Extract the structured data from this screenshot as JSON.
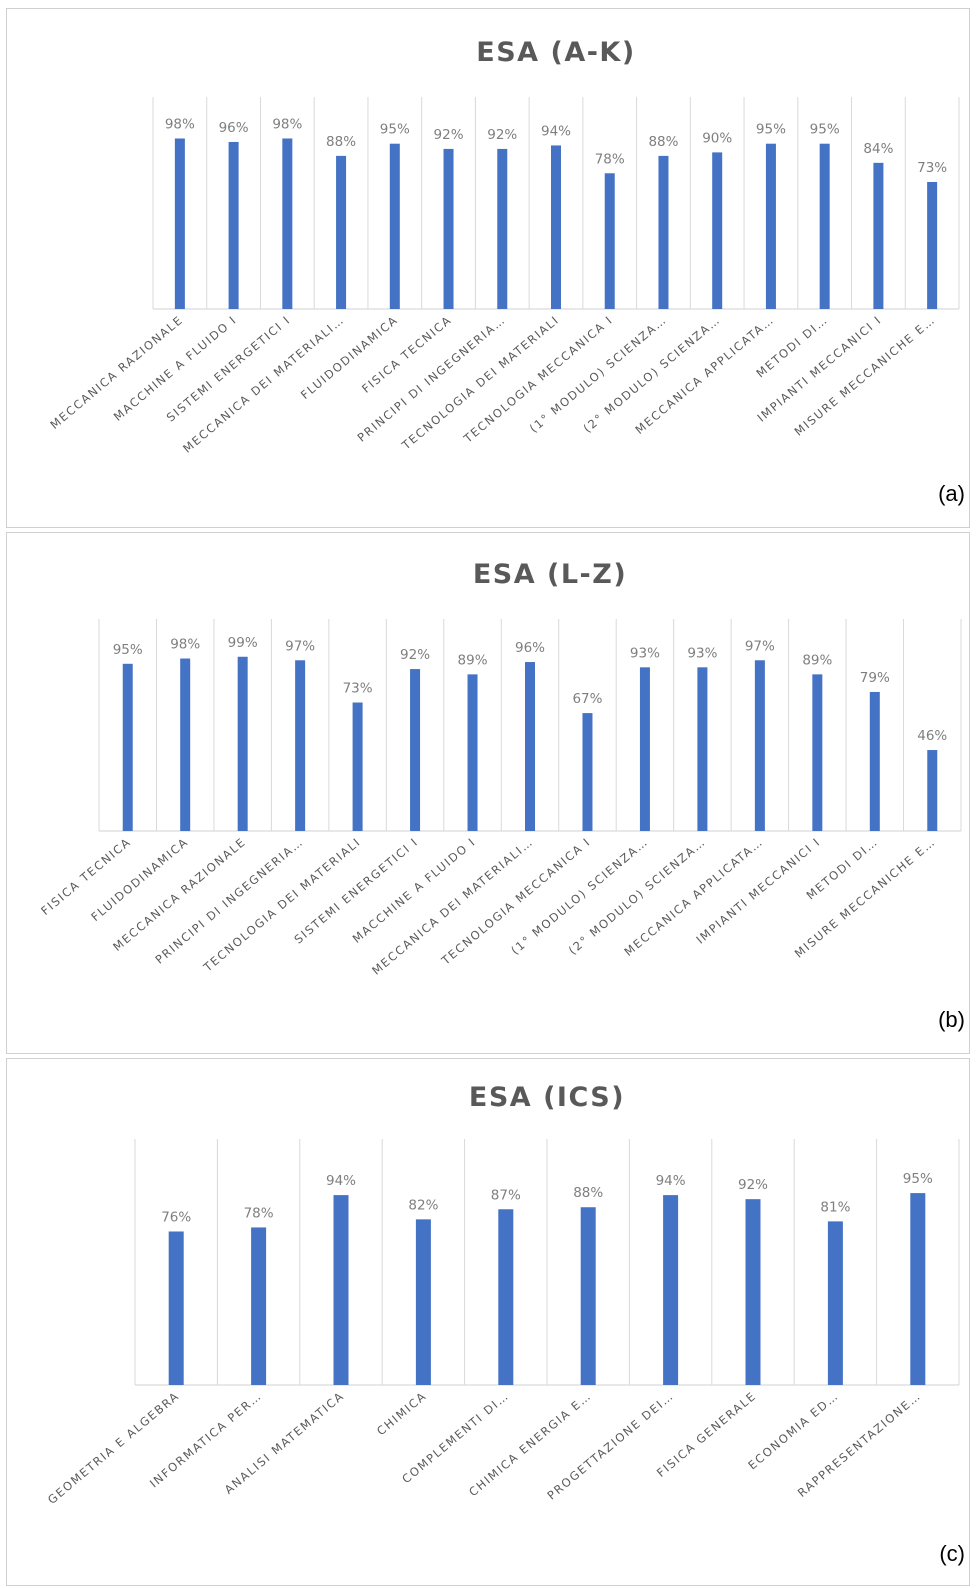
{
  "chart_data": [
    {
      "type": "bar",
      "title": "ESA (A-K)",
      "panel_label": "(a)",
      "categories": [
        "MECCANICA RAZIONALE",
        "MACCHINE A FLUIDO I",
        "SISTEMI ENERGETICI I",
        "MECCANICA DEI MATERIALI…",
        "FLUIDODINAMICA",
        "FISICA TECNICA",
        "PRINCIPI DI INGEGNERIA…",
        "TECNOLOGIA DEI MATERIALI",
        "TECNOLOGIA MECCANICA I",
        "(1° MODULO) SCIENZA…",
        "(2° MODULO) SCIENZA…",
        "MECCANICA APPLICATA…",
        "METODI DI…",
        "IMPIANTI MECCANICI I",
        "MISURE MECCANICHE E…"
      ],
      "values": [
        98,
        96,
        98,
        88,
        95,
        92,
        92,
        94,
        78,
        88,
        90,
        95,
        95,
        84,
        73
      ],
      "value_labels": [
        "98%",
        "96%",
        "98%",
        "88%",
        "95%",
        "92%",
        "92%",
        "94%",
        "78%",
        "88%",
        "90%",
        "95%",
        "95%",
        "84%",
        "73%"
      ],
      "xlabel": "",
      "ylabel": "",
      "ylim": [
        0,
        100
      ],
      "grid": "vertical",
      "legend": "none",
      "bar_color": "#4472c4"
    },
    {
      "type": "bar",
      "title": "ESA (L-Z)",
      "panel_label": "(b)",
      "categories": [
        "FISICA TECNICA",
        "FLUIDODINAMICA",
        "MECCANICA RAZIONALE",
        "PRINCIPI DI INGEGNERIA…",
        "TECNOLOGIA DEI MATERIALI",
        "SISTEMI ENERGETICI I",
        "MACCHINE A FLUIDO I",
        "MECCANICA DEI MATERIALI…",
        "TECNOLOGIA MECCANICA I",
        "(1° MODULO) SCIENZA…",
        "(2° MODULO) SCIENZA…",
        "MECCANICA APPLICATA…",
        "IMPIANTI MECCANICI I",
        "METODI DI…",
        "MISURE MECCANICHE E…"
      ],
      "values": [
        95,
        98,
        99,
        97,
        73,
        92,
        89,
        96,
        67,
        93,
        93,
        97,
        89,
        79,
        46
      ],
      "value_labels": [
        "95%",
        "98%",
        "99%",
        "97%",
        "73%",
        "92%",
        "89%",
        "96%",
        "67%",
        "93%",
        "93%",
        "97%",
        "89%",
        "79%",
        "46%"
      ],
      "xlabel": "",
      "ylabel": "",
      "ylim": [
        0,
        100
      ],
      "grid": "vertical",
      "legend": "none",
      "bar_color": "#4472c4"
    },
    {
      "type": "bar",
      "title": "ESA (ICS)",
      "panel_label": "(c)",
      "categories": [
        "GEOMETRIA E ALGEBRA",
        "INFORMATICA PER…",
        "ANALISI MATEMATICA",
        "CHIMICA",
        "COMPLEMENTI DI…",
        "CHIMICA ENERGIA E…",
        "PROGETTAZIONE DEI…",
        "FISICA GENERALE",
        "ECONOMIA ED…",
        "RAPPRESENTAZIONE…"
      ],
      "values": [
        76,
        78,
        94,
        82,
        87,
        88,
        94,
        92,
        81,
        95
      ],
      "value_labels": [
        "76%",
        "78%",
        "94%",
        "82%",
        "87%",
        "88%",
        "94%",
        "92%",
        "81%",
        "95%"
      ],
      "xlabel": "",
      "ylabel": "",
      "ylim": [
        0,
        100
      ],
      "grid": "vertical",
      "legend": "none",
      "bar_color": "#4472c4"
    }
  ]
}
